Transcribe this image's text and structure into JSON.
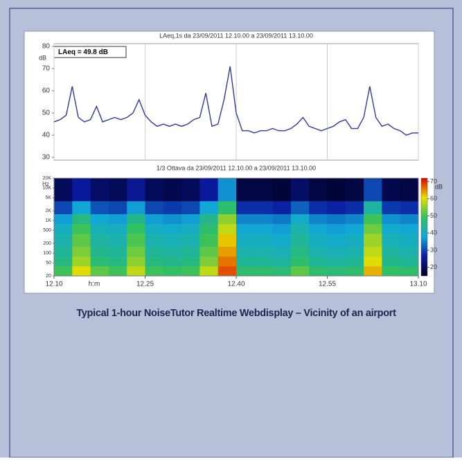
{
  "chart_data": [
    {
      "type": "line",
      "title": "LAeq,1s   da 23/09/2011 12.10.00   a 23/09/2011 13.10.00",
      "ylabel": "dB",
      "annotation": "LAeq = 49.8 dB",
      "x": [
        0,
        1,
        2,
        3,
        4,
        5,
        6,
        7,
        8,
        9,
        10,
        11,
        12,
        13,
        14,
        15,
        16,
        17,
        18,
        19,
        20,
        21,
        22,
        23,
        24,
        25,
        26,
        27,
        28,
        29,
        30,
        31,
        32,
        33,
        34,
        35,
        36,
        37,
        38,
        39,
        40,
        41,
        42,
        43,
        44,
        45,
        46,
        47,
        48,
        49,
        50,
        51,
        52,
        53,
        54,
        55,
        56,
        57,
        58,
        59,
        60
      ],
      "series": [
        {
          "name": "LAeq,1s",
          "color": "#2b3a9a",
          "values": [
            46,
            47,
            49,
            62,
            48,
            46,
            47,
            53,
            46,
            47,
            48,
            47,
            48,
            50,
            56,
            49,
            46,
            44,
            45,
            44,
            45,
            44,
            45,
            47,
            48,
            59,
            44,
            45,
            56,
            71,
            50,
            42,
            42,
            41,
            42,
            42,
            43,
            42,
            42,
            43,
            45,
            48,
            44,
            43,
            42,
            43,
            44,
            46,
            47,
            43,
            43,
            48,
            62,
            48,
            44,
            45,
            43,
            42,
            40,
            41,
            41
          ]
        }
      ],
      "xlim": [
        0,
        60
      ],
      "ylim": [
        30,
        80
      ],
      "yticks": [
        30,
        40,
        50,
        60,
        70,
        80
      ],
      "grid": true
    },
    {
      "type": "heatmap",
      "title": "1/3 Ottava   da 23/09/2011 12.10.00   a 23/09/2011 13.10.00",
      "xlabel": "h:m",
      "ylabel": "Hz",
      "zlabel": "dB",
      "x_bins": [
        0,
        3,
        6,
        9,
        12,
        15,
        18,
        21,
        24,
        27,
        30,
        33,
        36,
        39,
        42,
        45,
        48,
        51,
        54,
        57,
        60
      ],
      "y_bins": [
        20,
        40,
        80,
        160,
        400,
        800,
        1600,
        4000,
        20000
      ],
      "z": [
        [
          50,
          60,
          52,
          50,
          58,
          50,
          49,
          50,
          58,
          68,
          48,
          48,
          47,
          52,
          48,
          47,
          48,
          63,
          49,
          48
        ],
        [
          46,
          56,
          47,
          46,
          55,
          46,
          45,
          46,
          54,
          66,
          44,
          44,
          43,
          48,
          44,
          43,
          44,
          60,
          45,
          44
        ],
        [
          44,
          54,
          45,
          44,
          53,
          44,
          43,
          44,
          52,
          64,
          42,
          42,
          41,
          46,
          42,
          41,
          42,
          58,
          43,
          42
        ],
        [
          42,
          52,
          43,
          42,
          51,
          42,
          41,
          42,
          50,
          62,
          40,
          40,
          39,
          44,
          40,
          39,
          40,
          56,
          41,
          40
        ],
        [
          40,
          50,
          41,
          40,
          49,
          40,
          39,
          40,
          48,
          58,
          38,
          38,
          37,
          42,
          38,
          37,
          38,
          53,
          39,
          38
        ],
        [
          37,
          46,
          38,
          37,
          45,
          37,
          36,
          37,
          45,
          55,
          35,
          35,
          34,
          39,
          35,
          34,
          35,
          50,
          36,
          35
        ],
        [
          30,
          38,
          31,
          30,
          37,
          30,
          29,
          30,
          38,
          48,
          28,
          28,
          27,
          32,
          28,
          27,
          28,
          43,
          29,
          28
        ],
        [
          20,
          26,
          21,
          20,
          25,
          20,
          19,
          20,
          26,
          36,
          18,
          18,
          17,
          21,
          18,
          17,
          18,
          30,
          19,
          18
        ]
      ],
      "xlim": [
        0,
        60
      ],
      "ylim": [
        20,
        20000
      ],
      "log_y": true,
      "zlim": [
        15,
        72
      ],
      "xticks": [
        {
          "value": 0,
          "label": "12.10"
        },
        {
          "value": 15,
          "label": "12.25"
        },
        {
          "value": 30,
          "label": "12.40"
        },
        {
          "value": 45,
          "label": "12.55"
        },
        {
          "value": 60,
          "label": "13.10"
        }
      ],
      "yticks": [
        20,
        50,
        100,
        200,
        500,
        {
          "value": 1000,
          "label": "1K"
        },
        {
          "value": 2000,
          "label": "2K"
        },
        {
          "value": 5000,
          "label": "5K"
        },
        {
          "value": 10000,
          "label": "10K"
        },
        {
          "value": 20000,
          "label": "20K"
        }
      ],
      "zticks": [
        20,
        30,
        40,
        50,
        60,
        70
      ],
      "colorscale": [
        "#000022",
        "#0a1aa0",
        "#10a8d8",
        "#30c060",
        "#e8e000",
        "#e00000"
      ]
    }
  ],
  "caption": "Typical 1-hour NoiseTutor Realtime Webdisplay – Vicinity of an airport"
}
